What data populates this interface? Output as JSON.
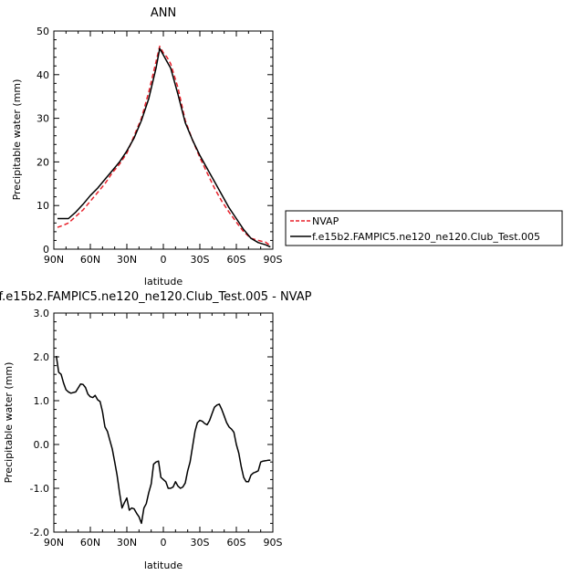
{
  "chart_data": [
    {
      "type": "line",
      "title": "ANN",
      "xlabel": "latitude",
      "ylabel": "Precipitable water (mm)",
      "xlim": [
        90,
        -90
      ],
      "ylim": [
        0,
        50
      ],
      "xticks": [
        90,
        60,
        30,
        0,
        -30,
        -60,
        -90
      ],
      "xtick_labels": [
        "90N",
        "60N",
        "30N",
        "0",
        "30S",
        "60S",
        "90S"
      ],
      "yticks": [
        0,
        10,
        20,
        30,
        40,
        50
      ],
      "ytick_labels": [
        "0",
        "10",
        "20",
        "30",
        "40",
        "50"
      ],
      "grid": false,
      "legend_position": "right",
      "series": [
        {
          "name": "NVAP",
          "color": "#e8202a",
          "style": "dashed",
          "x": [
            87,
            82,
            78,
            72,
            66,
            60,
            54,
            48,
            42,
            36,
            30,
            24,
            18,
            12,
            6,
            3,
            0,
            -3,
            -6,
            -12,
            -18,
            -24,
            -30,
            -36,
            -42,
            -48,
            -54,
            -60,
            -66,
            -72,
            -78,
            -84,
            -88
          ],
          "y": [
            5,
            5.5,
            6,
            7.5,
            9,
            11,
            13,
            15,
            17.5,
            19.5,
            22,
            26,
            30,
            36,
            43,
            46.5,
            45,
            44,
            42.5,
            37,
            29.5,
            25,
            21,
            17.5,
            14,
            11,
            8.5,
            6.2,
            4,
            2.5,
            2,
            1.6,
            0.8
          ]
        },
        {
          "name": "f.e15b2.FAMPIC5.ne120_ne120.Club_Test.005",
          "color": "#000000",
          "style": "solid",
          "x": [
            87,
            82,
            78,
            72,
            66,
            60,
            54,
            48,
            42,
            36,
            30,
            24,
            18,
            12,
            6,
            3,
            0,
            -3,
            -6,
            -12,
            -18,
            -24,
            -30,
            -36,
            -42,
            -48,
            -54,
            -60,
            -66,
            -72,
            -78,
            -84,
            -88
          ],
          "y": [
            7,
            7,
            7,
            8.5,
            10.3,
            12.3,
            14,
            16,
            18,
            20,
            22.5,
            25.5,
            29.5,
            34.5,
            41.5,
            46,
            44.5,
            43,
            41.5,
            35.5,
            29,
            25,
            21.5,
            18.5,
            15.5,
            12.5,
            9.5,
            7,
            4.5,
            2.5,
            1.5,
            1,
            0.5
          ]
        }
      ]
    },
    {
      "type": "line",
      "title": "f.e15b2.FAMPIC5.ne120_ne120.Club_Test.005 - NVAP",
      "xlabel": "latitude",
      "ylabel": "Precipitable water (mm)",
      "xlim": [
        90,
        -90
      ],
      "ylim": [
        -2,
        3
      ],
      "xticks": [
        90,
        60,
        30,
        0,
        -30,
        -60,
        -90
      ],
      "xtick_labels": [
        "90N",
        "60N",
        "30N",
        "0",
        "30S",
        "60S",
        "90S"
      ],
      "yticks": [
        -2,
        -1,
        0,
        1,
        2,
        3
      ],
      "ytick_labels": [
        "-2.0",
        "-1.0",
        "0.0",
        "1.0",
        "2.0",
        "3.0"
      ],
      "grid": false,
      "series": [
        {
          "color": "#000000",
          "style": "solid",
          "x": [
            88,
            86,
            84,
            82,
            80,
            78,
            76,
            72,
            68,
            66,
            64,
            62,
            60,
            58,
            56,
            54,
            52,
            50,
            48,
            46,
            44,
            42,
            40,
            38,
            36,
            34,
            32,
            30,
            28,
            26,
            24,
            22,
            20,
            18,
            16,
            14,
            12,
            10,
            8,
            6,
            4,
            2,
            0,
            -2,
            -4,
            -6,
            -8,
            -10,
            -12,
            -14,
            -16,
            -18,
            -20,
            -22,
            -24,
            -26,
            -28,
            -30,
            -32,
            -34,
            -36,
            -38,
            -40,
            -42,
            -44,
            -46,
            -48,
            -50,
            -52,
            -54,
            -56,
            -58,
            -60,
            -62,
            -64,
            -66,
            -68,
            -70,
            -72,
            -74,
            -76,
            -78,
            -80,
            -82,
            -84,
            -86,
            -88
          ],
          "y": [
            2.02,
            1.65,
            1.6,
            1.4,
            1.25,
            1.2,
            1.17,
            1.2,
            1.38,
            1.37,
            1.3,
            1.15,
            1.09,
            1.07,
            1.12,
            1.02,
            0.98,
            0.75,
            0.4,
            0.3,
            0.1,
            -0.1,
            -0.4,
            -0.7,
            -1.1,
            -1.45,
            -1.33,
            -1.22,
            -1.5,
            -1.45,
            -1.47,
            -1.57,
            -1.65,
            -1.8,
            -1.45,
            -1.35,
            -1.1,
            -0.9,
            -0.45,
            -0.4,
            -0.38,
            -0.75,
            -0.8,
            -0.85,
            -1.0,
            -1.0,
            -0.97,
            -0.85,
            -0.95,
            -1.0,
            -0.97,
            -0.88,
            -0.6,
            -0.4,
            -0.05,
            0.3,
            0.5,
            0.55,
            0.53,
            0.48,
            0.45,
            0.55,
            0.7,
            0.85,
            0.9,
            0.92,
            0.8,
            0.65,
            0.5,
            0.4,
            0.35,
            0.28,
            0.0,
            -0.2,
            -0.5,
            -0.75,
            -0.85,
            -0.85,
            -0.7,
            -0.65,
            -0.63,
            -0.6,
            -0.4,
            -0.38,
            -0.37,
            -0.36,
            -0.36
          ]
        }
      ]
    }
  ]
}
